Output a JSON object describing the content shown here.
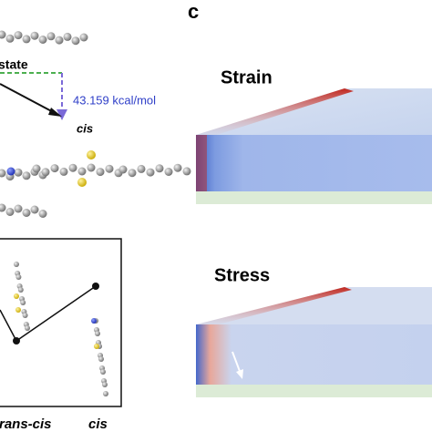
{
  "panel_label": "c",
  "energy_diagram": {
    "state_label": "state",
    "barrier": "43.159 kcal/mol",
    "end_label": "cis"
  },
  "simulations": [
    {
      "title": "Strain"
    },
    {
      "title": "Stress"
    }
  ],
  "plot": {
    "categories": [
      "trans-cis",
      "cis"
    ]
  }
}
